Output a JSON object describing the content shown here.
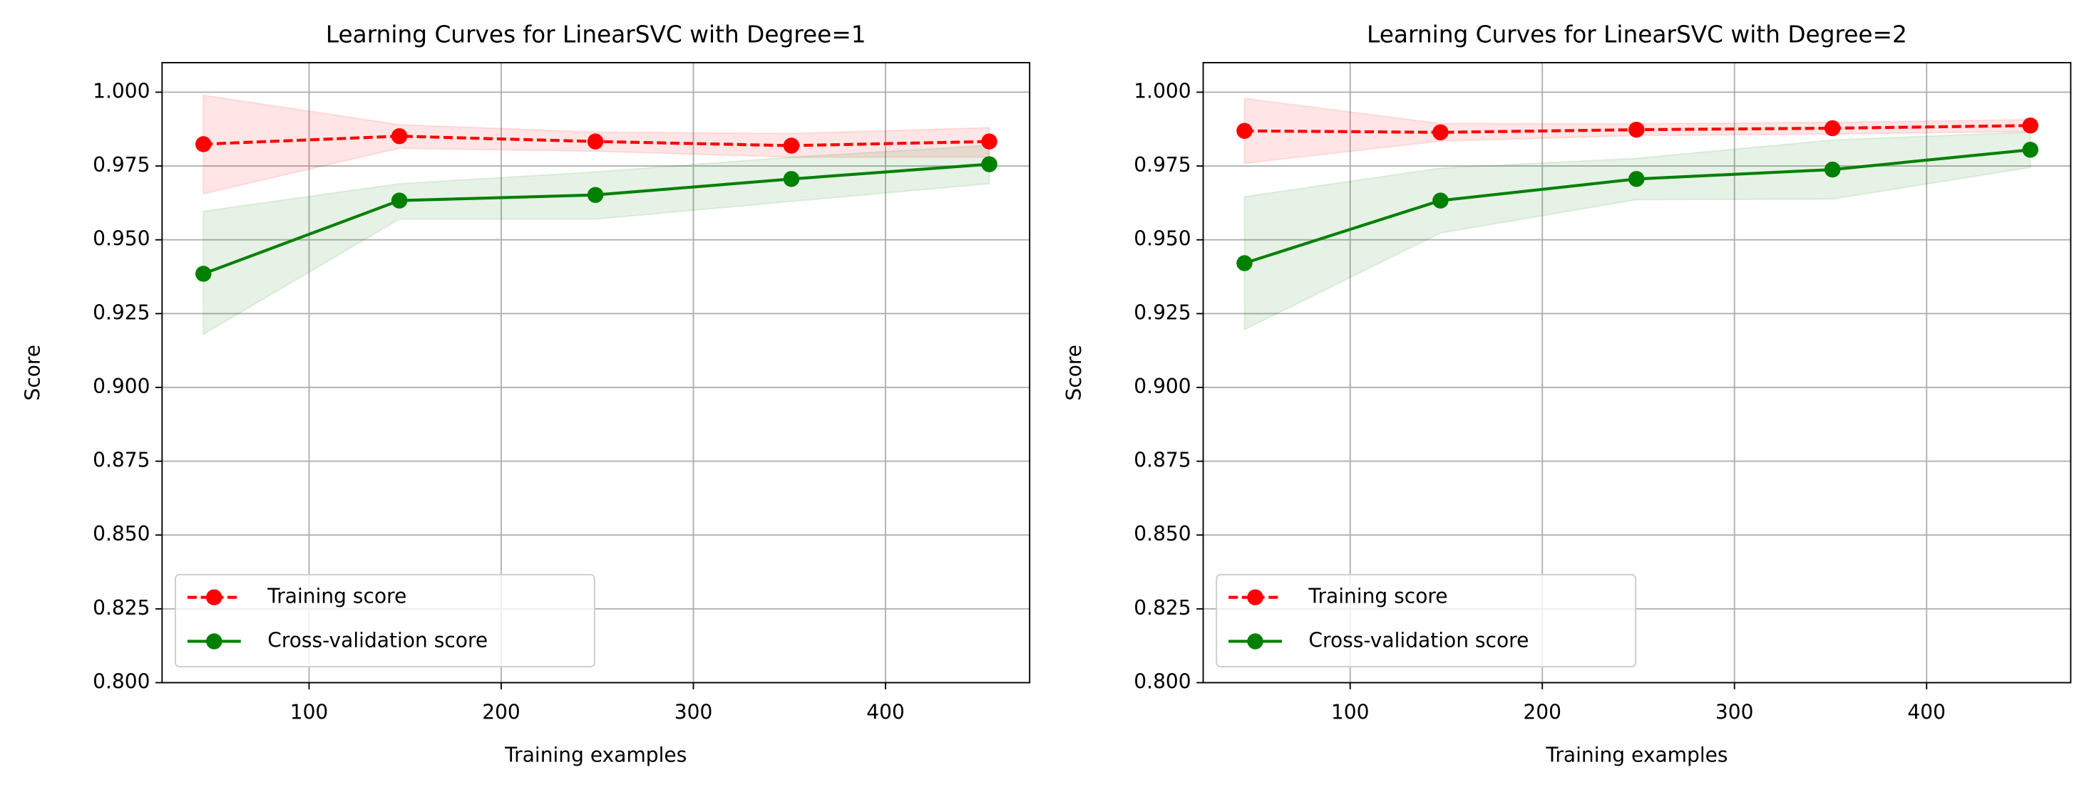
{
  "chart_data": [
    {
      "type": "line",
      "title": "Learning Curves for LinearSVC with Degree=1",
      "xlabel": "Training examples",
      "ylabel": "Score",
      "x": [
        45,
        147,
        249,
        351,
        454
      ],
      "xlim": [
        23.5,
        475
      ],
      "ylim": [
        0.8,
        1.01
      ],
      "xticks": [
        100,
        200,
        300,
        400
      ],
      "yticks": [
        {
          "value": 0.8,
          "label": "0.800"
        },
        0.825,
        {
          "value": 0.85,
          "label": "0.850"
        },
        0.875,
        {
          "value": 0.9,
          "label": "0.900"
        },
        0.925,
        {
          "value": 0.95,
          "label": "0.950"
        },
        0.975,
        {
          "value": 1.0,
          "label": "1.000"
        }
      ],
      "grid": true,
      "legend": "lower left",
      "series": [
        {
          "name": "Training score",
          "color": "#ff0000",
          "linestyle": "dashed",
          "values": [
            0.9824,
            0.9851,
            0.9833,
            0.9819,
            0.9833
          ],
          "lower": [
            0.9656,
            0.981,
            0.98,
            0.978,
            0.978
          ],
          "upper": [
            0.999,
            0.989,
            0.9865,
            0.986,
            0.988
          ]
        },
        {
          "name": "Cross-validation score",
          "color": "#008000",
          "linestyle": "solid",
          "values": [
            0.9385,
            0.9633,
            0.9652,
            0.9706,
            0.9756
          ],
          "lower": [
            0.918,
            0.957,
            0.957,
            0.963,
            0.969
          ],
          "upper": [
            0.9597,
            0.969,
            0.973,
            0.978,
            0.982
          ]
        }
      ]
    },
    {
      "type": "line",
      "title": "Learning Curves for LinearSVC with Degree=2",
      "xlabel": "Training examples",
      "ylabel": "Score",
      "x": [
        45,
        147,
        249,
        351,
        454
      ],
      "xlim": [
        23.5,
        475
      ],
      "ylim": [
        0.8,
        1.01
      ],
      "xticks": [
        100,
        200,
        300,
        400
      ],
      "yticks": [
        {
          "value": 0.8,
          "label": "0.800"
        },
        0.825,
        {
          "value": 0.85,
          "label": "0.850"
        },
        0.875,
        {
          "value": 0.9,
          "label": "0.900"
        },
        0.925,
        {
          "value": 0.95,
          "label": "0.950"
        },
        0.975,
        {
          "value": 1.0,
          "label": "1.000"
        }
      ],
      "grid": true,
      "legend": "lower left",
      "series": [
        {
          "name": "Training score",
          "color": "#ff0000",
          "linestyle": "dashed",
          "values": [
            0.9869,
            0.9864,
            0.9873,
            0.9878,
            0.9887
          ],
          "lower": [
            0.9759,
            0.9834,
            0.9853,
            0.9858,
            0.9867
          ],
          "upper": [
            0.9979,
            0.9894,
            0.9893,
            0.9898,
            0.9907
          ]
        },
        {
          "name": "Cross-validation score",
          "color": "#008000",
          "linestyle": "solid",
          "values": [
            0.9421,
            0.9633,
            0.9706,
            0.9738,
            0.9805
          ],
          "lower": [
            0.9196,
            0.9523,
            0.9636,
            0.9638,
            0.9745
          ],
          "upper": [
            0.9646,
            0.9743,
            0.9776,
            0.9838,
            0.9865
          ]
        }
      ]
    }
  ]
}
